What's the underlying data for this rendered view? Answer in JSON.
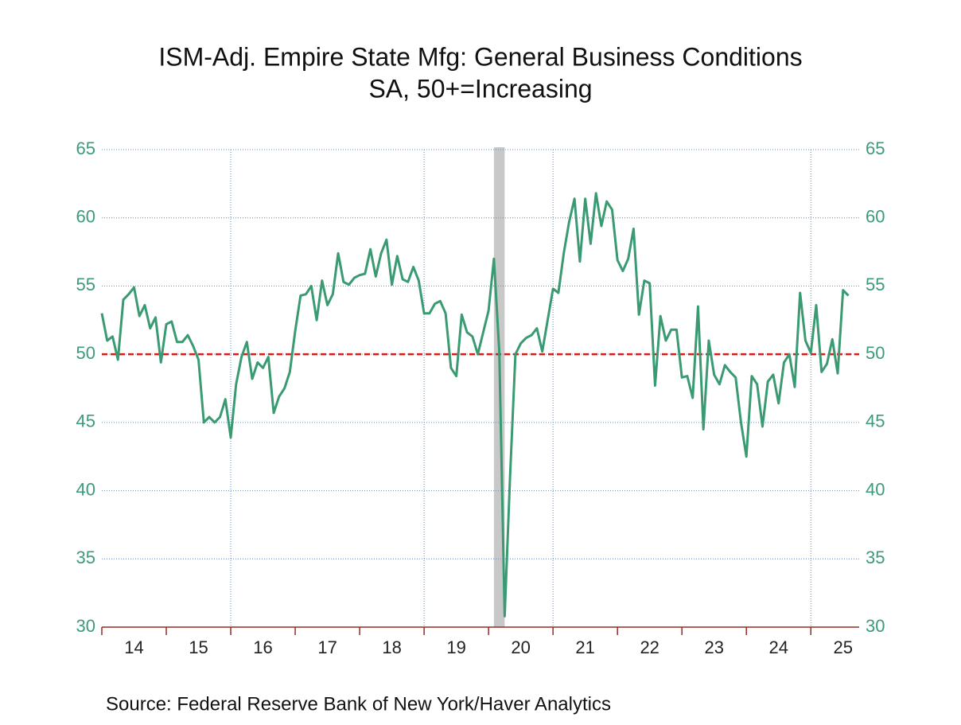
{
  "chart_data": {
    "type": "line",
    "title": "ISM-Adj. Empire State Mfg: General Business Conditions",
    "subtitle": "SA, 50+=Increasing",
    "source": "Source:  Federal Reserve Bank of New York/Haver Analytics",
    "x": [
      "2014-01",
      "2014-02",
      "2014-03",
      "2014-04",
      "2014-05",
      "2014-06",
      "2014-07",
      "2014-08",
      "2014-09",
      "2014-10",
      "2014-11",
      "2014-12",
      "2015-01",
      "2015-02",
      "2015-03",
      "2015-04",
      "2015-05",
      "2015-06",
      "2015-07",
      "2015-08",
      "2015-09",
      "2015-10",
      "2015-11",
      "2015-12",
      "2016-01",
      "2016-02",
      "2016-03",
      "2016-04",
      "2016-05",
      "2016-06",
      "2016-07",
      "2016-08",
      "2016-09",
      "2016-10",
      "2016-11",
      "2016-12",
      "2017-01",
      "2017-02",
      "2017-03",
      "2017-04",
      "2017-05",
      "2017-06",
      "2017-07",
      "2017-08",
      "2017-09",
      "2017-10",
      "2017-11",
      "2017-12",
      "2018-01",
      "2018-02",
      "2018-03",
      "2018-04",
      "2018-05",
      "2018-06",
      "2018-07",
      "2018-08",
      "2018-09",
      "2018-10",
      "2018-11",
      "2018-12",
      "2019-01",
      "2019-02",
      "2019-03",
      "2019-04",
      "2019-05",
      "2019-06",
      "2019-07",
      "2019-08",
      "2019-09",
      "2019-10",
      "2019-11",
      "2019-12",
      "2020-01",
      "2020-02",
      "2020-03",
      "2020-04",
      "2020-05",
      "2020-06",
      "2020-07",
      "2020-08",
      "2020-09",
      "2020-10",
      "2020-11",
      "2020-12",
      "2021-01",
      "2021-02",
      "2021-03",
      "2021-04",
      "2021-05",
      "2021-06",
      "2021-07",
      "2021-08",
      "2021-09",
      "2021-10",
      "2021-11",
      "2021-12",
      "2022-01",
      "2022-02",
      "2022-03",
      "2022-04",
      "2022-05",
      "2022-06",
      "2022-07",
      "2022-08",
      "2022-09",
      "2022-10",
      "2022-11",
      "2022-12",
      "2023-01",
      "2023-02",
      "2023-03",
      "2023-04",
      "2023-05",
      "2023-06",
      "2023-07",
      "2023-08",
      "2023-09",
      "2023-10",
      "2023-11",
      "2023-12",
      "2024-01",
      "2024-02",
      "2024-03",
      "2024-04",
      "2024-05",
      "2024-06",
      "2024-07",
      "2024-08",
      "2024-09",
      "2024-10",
      "2024-11",
      "2024-12",
      "2025-01",
      "2025-02",
      "2025-03",
      "2025-04",
      "2025-05",
      "2025-06",
      "2025-07",
      "2025-08"
    ],
    "series": [
      {
        "color": "#3a9a72",
        "values": [
          53.0,
          51.0,
          51.3,
          49.6,
          54.0,
          54.4,
          54.9,
          52.8,
          53.6,
          51.9,
          52.7,
          49.4,
          52.2,
          52.4,
          50.9,
          50.9,
          51.4,
          50.6,
          49.6,
          45.0,
          45.4,
          45.0,
          45.4,
          46.7,
          43.9,
          47.8,
          49.8,
          50.9,
          48.2,
          49.4,
          49.0,
          49.8,
          45.7,
          46.9,
          47.5,
          48.7,
          51.7,
          54.3,
          54.4,
          55.0,
          52.5,
          55.4,
          53.6,
          54.4,
          57.4,
          55.3,
          55.1,
          55.6,
          55.8,
          55.9,
          57.7,
          55.7,
          57.4,
          58.4,
          55.1,
          57.2,
          55.5,
          55.3,
          56.4,
          55.4,
          53.0,
          53.0,
          53.7,
          53.9,
          53.0,
          49.0,
          48.4,
          52.9,
          51.6,
          51.3,
          50.0,
          51.6,
          53.2,
          57.0,
          50.2,
          30.8,
          41.0,
          50.0,
          50.8,
          51.2,
          51.4,
          51.9,
          50.2,
          52.5,
          54.8,
          54.5,
          57.4,
          59.7,
          61.4,
          56.8,
          61.4,
          58.1,
          61.8,
          59.4,
          61.2,
          60.6,
          56.9,
          56.1,
          57.0,
          59.2,
          52.9,
          55.4,
          55.2,
          47.7,
          52.8,
          51.0,
          51.8,
          51.8,
          48.3,
          48.4,
          46.8,
          53.5,
          44.5,
          51.0,
          48.5,
          47.8,
          49.2,
          48.7,
          48.3,
          45.0,
          42.5,
          48.4,
          47.8,
          44.7,
          48.0,
          48.5,
          46.4,
          49.4,
          50.0,
          47.6,
          54.5,
          51.0,
          50.1,
          53.6,
          48.7,
          49.3,
          51.1,
          48.6,
          54.7,
          54.3
        ]
      }
    ],
    "xlim": [
      "2014-01",
      "2025-10"
    ],
    "xticks": [
      {
        "value": "2014-07",
        "label": "14"
      },
      {
        "value": "2015-07",
        "label": "15"
      },
      {
        "value": "2016-07",
        "label": "16"
      },
      {
        "value": "2017-07",
        "label": "17"
      },
      {
        "value": "2018-07",
        "label": "18"
      },
      {
        "value": "2019-07",
        "label": "19"
      },
      {
        "value": "2020-07",
        "label": "20"
      },
      {
        "value": "2021-07",
        "label": "21"
      },
      {
        "value": "2022-07",
        "label": "22"
      },
      {
        "value": "2023-07",
        "label": "23"
      },
      {
        "value": "2024-07",
        "label": "24"
      },
      {
        "value": "2025-07",
        "label": "25"
      }
    ],
    "vgrid": [
      "2016-01",
      "2019-01",
      "2021-01",
      "2025-01"
    ],
    "recession": [
      "2020-02",
      "2020-04"
    ],
    "reference_line": 50,
    "ylim": [
      30,
      65
    ],
    "yticks": [
      30,
      35,
      40,
      45,
      50,
      55,
      60,
      65
    ],
    "y2lim": [
      30,
      65
    ],
    "y2ticks": [
      30,
      35,
      40,
      45,
      50,
      55,
      60,
      65
    ],
    "grid": true
  }
}
